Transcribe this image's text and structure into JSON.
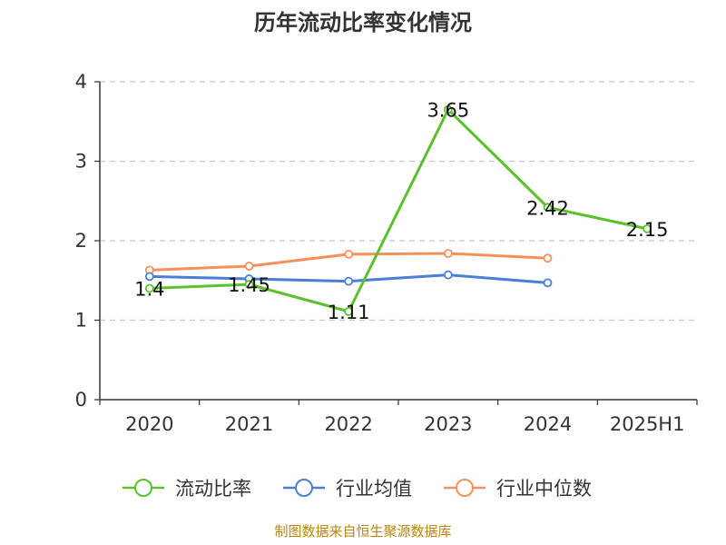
{
  "chart_data": {
    "type": "line",
    "title": "历年流动比率变化情况",
    "categories": [
      "2020",
      "2021",
      "2022",
      "2023",
      "2024",
      "2025H1"
    ],
    "ylim": [
      0,
      4
    ],
    "yticks": [
      "0",
      "1",
      "2",
      "3",
      "4"
    ],
    "grid": true,
    "legend_position": "bottom",
    "series": [
      {
        "name": "流动比率",
        "color": "#5bc12b",
        "values": [
          1.4,
          1.45,
          1.11,
          3.65,
          2.42,
          2.15
        ],
        "labels": [
          "1.4",
          "1.45",
          "1.11",
          "3.65",
          "2.42",
          "2.15"
        ]
      },
      {
        "name": "行业均值",
        "color": "#4a7fd6",
        "values": [
          1.55,
          1.52,
          1.49,
          1.57,
          1.47,
          null
        ]
      },
      {
        "name": "行业中位数",
        "color": "#f59058",
        "values": [
          1.63,
          1.68,
          1.83,
          1.84,
          1.78,
          null
        ]
      }
    ]
  },
  "source": "制图数据来自恒生聚源数据库"
}
